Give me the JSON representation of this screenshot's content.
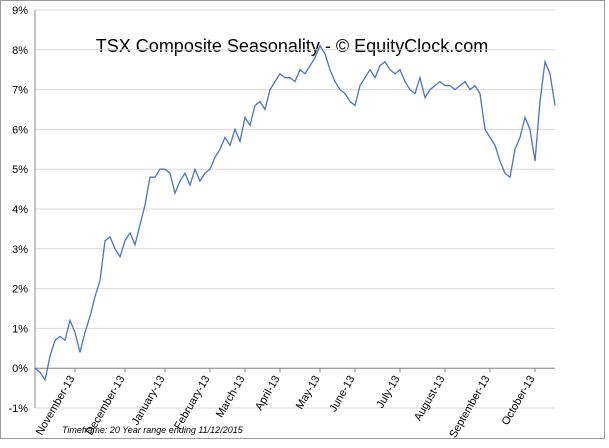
{
  "chart_data": {
    "type": "line",
    "title": "TSX Composite Seasonality - © EquityClock.com",
    "footnote": "Timeframe: 20 Year range ending 11/12/2015",
    "categories": [
      null,
      null,
      null,
      null,
      null,
      null,
      null,
      null,
      "November-13",
      null,
      null,
      null,
      null,
      null,
      null,
      null,
      null,
      null,
      "December-13",
      null,
      null,
      null,
      null,
      null,
      null,
      null,
      "January-13",
      null,
      null,
      null,
      null,
      null,
      null,
      null,
      null,
      "February-13",
      null,
      null,
      null,
      null,
      null,
      null,
      "March-13",
      null,
      null,
      null,
      null,
      null,
      null,
      "April-13",
      null,
      null,
      null,
      null,
      null,
      null,
      null,
      "May-13",
      null,
      null,
      null,
      null,
      null,
      null,
      "June-13",
      null,
      null,
      null,
      null,
      null,
      null,
      null,
      null,
      "July-13",
      null,
      null,
      null,
      null,
      null,
      null,
      null,
      null,
      "August-13",
      null,
      null,
      null,
      null,
      null,
      null,
      null,
      null,
      "September-13",
      null,
      null,
      null,
      null,
      null,
      null,
      null,
      null,
      "October-13",
      null,
      null,
      null,
      null
    ],
    "series": [
      {
        "name": "TSX Composite",
        "color": "#4a74c0",
        "values": [
          0,
          -0.1,
          -0.3,
          0.3,
          0.7,
          0.8,
          0.7,
          1.2,
          0.9,
          0.4,
          0.9,
          1.3,
          1.8,
          2.2,
          3.2,
          3.3,
          3.0,
          2.8,
          3.2,
          3.4,
          3.1,
          3.6,
          4.1,
          4.8,
          4.8,
          5.0,
          5.0,
          4.9,
          4.4,
          4.7,
          4.9,
          4.6,
          5.0,
          4.7,
          4.9,
          5.0,
          5.3,
          5.5,
          5.8,
          5.6,
          6.0,
          5.7,
          6.3,
          6.1,
          6.6,
          6.7,
          6.5,
          7.0,
          7.2,
          7.4,
          7.3,
          7.3,
          7.2,
          7.5,
          7.4,
          7.6,
          7.8,
          8.1,
          7.9,
          7.5,
          7.2,
          7.0,
          6.9,
          6.7,
          6.6,
          7.1,
          7.3,
          7.5,
          7.3,
          7.6,
          7.7,
          7.5,
          7.4,
          7.5,
          7.2,
          7.0,
          6.9,
          7.3,
          6.8,
          7.0,
          7.1,
          7.2,
          7.1,
          7.1,
          7.0,
          7.1,
          7.2,
          7.0,
          7.1,
          6.9,
          6.0,
          5.8,
          5.6,
          5.2,
          4.9,
          4.8,
          5.5,
          5.8,
          6.3,
          6.0,
          5.2,
          6.7,
          7.7,
          7.4,
          6.6
        ]
      }
    ],
    "ylim": [
      -1,
      9
    ],
    "yticks": [
      {
        "value": -1,
        "label": "-1%"
      },
      {
        "value": 0,
        "label": "0%"
      },
      {
        "value": 1,
        "label": "1%"
      },
      {
        "value": 2,
        "label": "2%"
      },
      {
        "value": 3,
        "label": "3%"
      },
      {
        "value": 4,
        "label": "4%"
      },
      {
        "value": 5,
        "label": "5%"
      },
      {
        "value": 6,
        "label": "6%"
      },
      {
        "value": 7,
        "label": "7%"
      },
      {
        "value": 8,
        "label": "8%"
      },
      {
        "value": 9,
        "label": "9%"
      }
    ],
    "grid": true
  }
}
